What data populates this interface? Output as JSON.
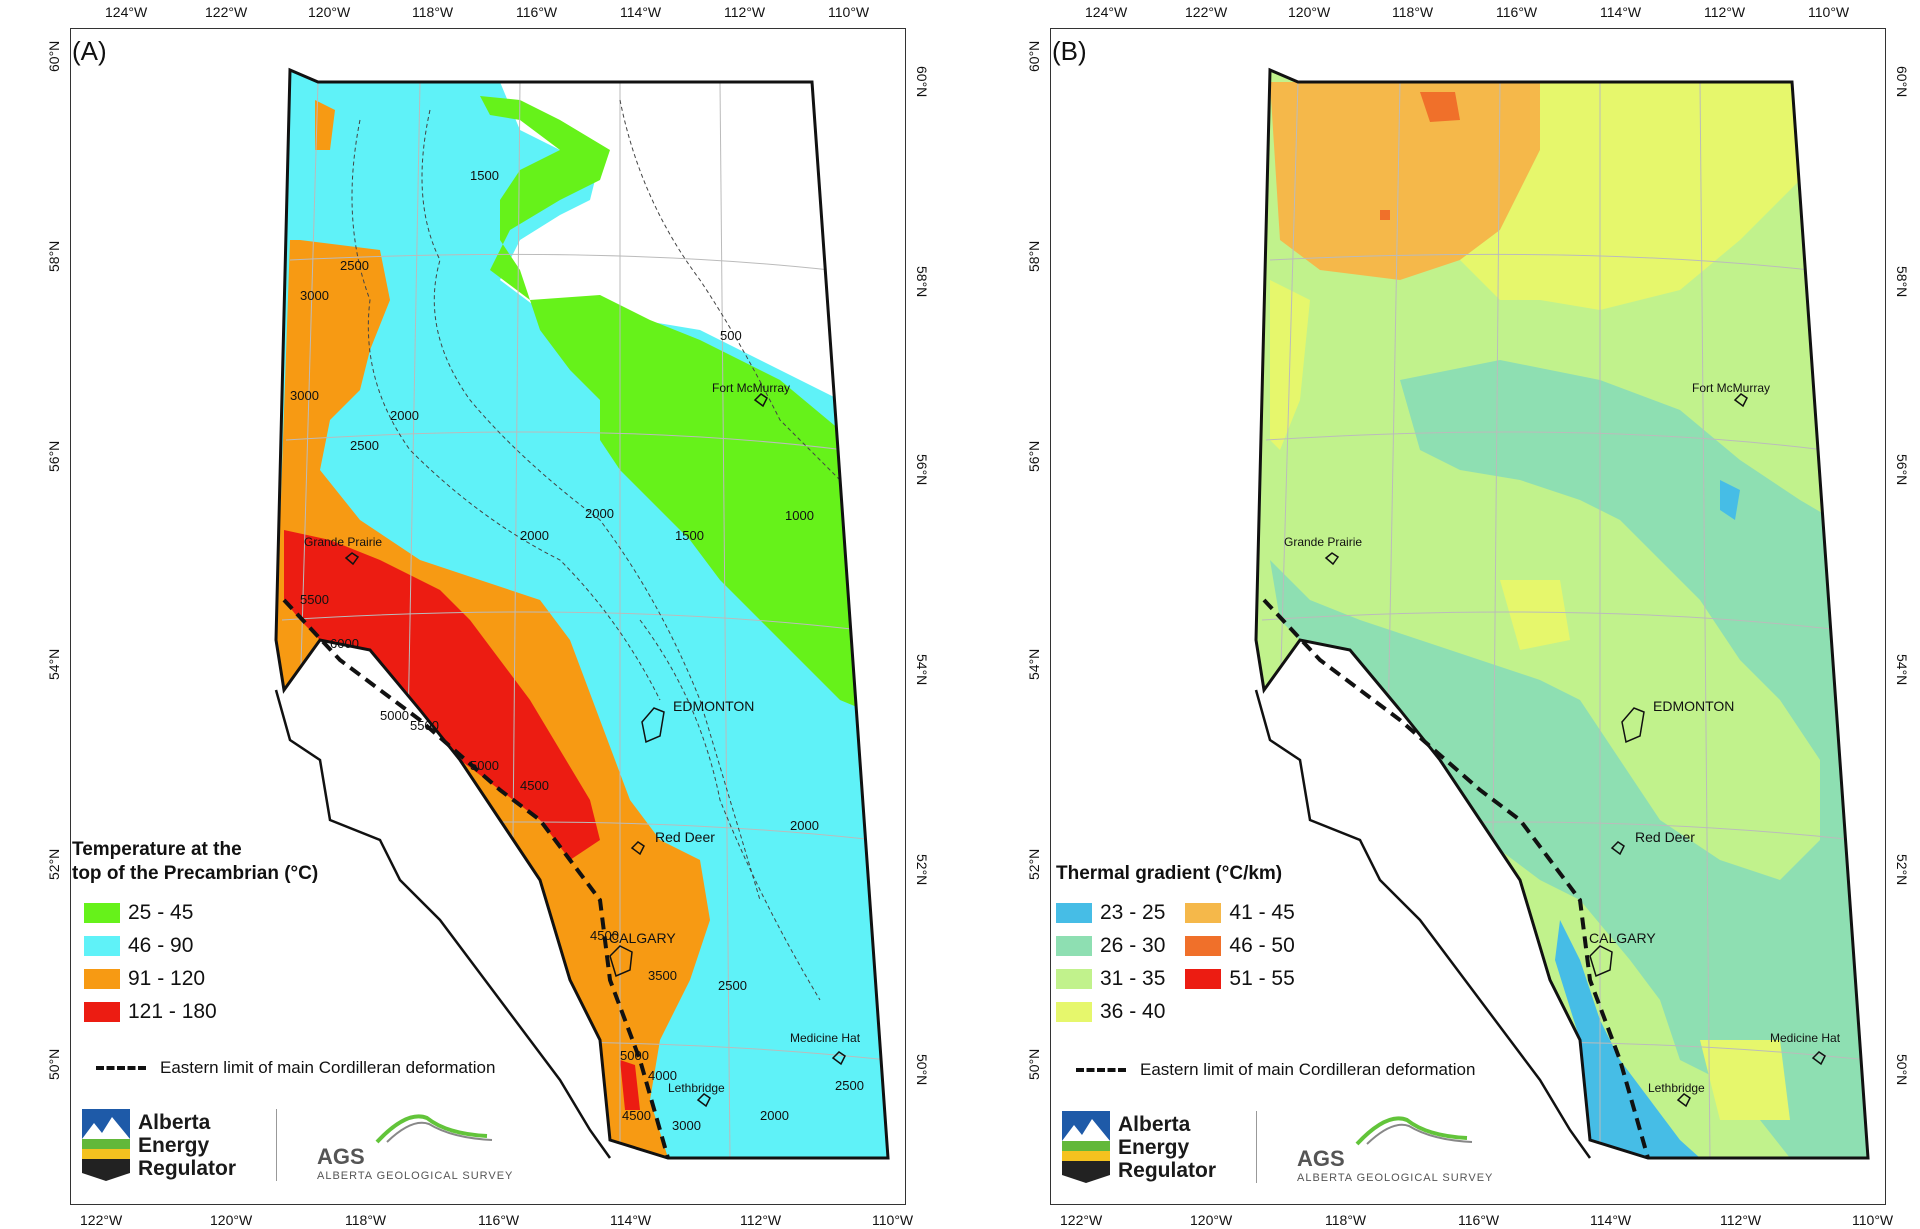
{
  "panels": [
    {
      "label": "(A)",
      "legend_title_line1": "Temperature at the",
      "legend_title_line2": "top of the Precambrian (°C)",
      "legend_items": [
        {
          "label": "25 - 45",
          "color": "#66f21a"
        },
        {
          "label": "46 - 90",
          "color": "#5ff2f8"
        },
        {
          "label": "91 - 120",
          "color": "#f79a13"
        },
        {
          "label": "121 - 180",
          "color": "#ec1c12"
        }
      ],
      "contours": [
        "1500",
        "2500",
        "3000",
        "3000",
        "2500",
        "2000",
        "500",
        "2000",
        "2000",
        "1000",
        "1500",
        "5500",
        "6000",
        "5000",
        "5500",
        "5000",
        "4500",
        "2000",
        "4500",
        "3500",
        "2500",
        "4000",
        "5000",
        "4500",
        "3000",
        "2000",
        "2500"
      ],
      "cities": [
        "Fort McMurray",
        "Grande Prairie",
        "EDMONTON",
        "Red Deer",
        "CALGARY",
        "Medicine Hat",
        "Lethbridge"
      ]
    },
    {
      "label": "(B)",
      "legend_title_line1": "Thermal gradient (°C/km)",
      "legend_items": [
        {
          "label": "23 - 25",
          "color": "#46bde6"
        },
        {
          "label": "26 - 30",
          "color": "#8edfb2"
        },
        {
          "label": "31 - 35",
          "color": "#c1f28c"
        },
        {
          "label": "36 - 40",
          "color": "#e6f76c"
        },
        {
          "label": "41 - 45",
          "color": "#f5b84a"
        },
        {
          "label": "46 - 50",
          "color": "#f0702a"
        },
        {
          "label": "51 - 55",
          "color": "#ec1c12"
        }
      ],
      "cities": [
        "Fort McMurray",
        "Grande Prairie",
        "EDMONTON",
        "Red Deer",
        "CALGARY",
        "Medicine Hat",
        "Lethbridge"
      ]
    }
  ],
  "ticks_top": [
    "124°W",
    "122°W",
    "120°W",
    "118°W",
    "116°W",
    "114°W",
    "112°W",
    "110°W"
  ],
  "ticks_bottom": [
    "122°W",
    "120°W",
    "118°W",
    "116°W",
    "114°W",
    "112°W",
    "110°W"
  ],
  "ticks_lat": [
    "60°N",
    "58°N",
    "56°N",
    "54°N",
    "52°N",
    "50°N"
  ],
  "deformation_label": "Eastern limit of main Cordilleran deformation",
  "logo": {
    "aer_line1": "Alberta",
    "aer_line2": "Energy",
    "aer_line3": "Regulator",
    "ags_main": "AGS",
    "ags_sub": "ALBERTA GEOLOGICAL SURVEY"
  }
}
